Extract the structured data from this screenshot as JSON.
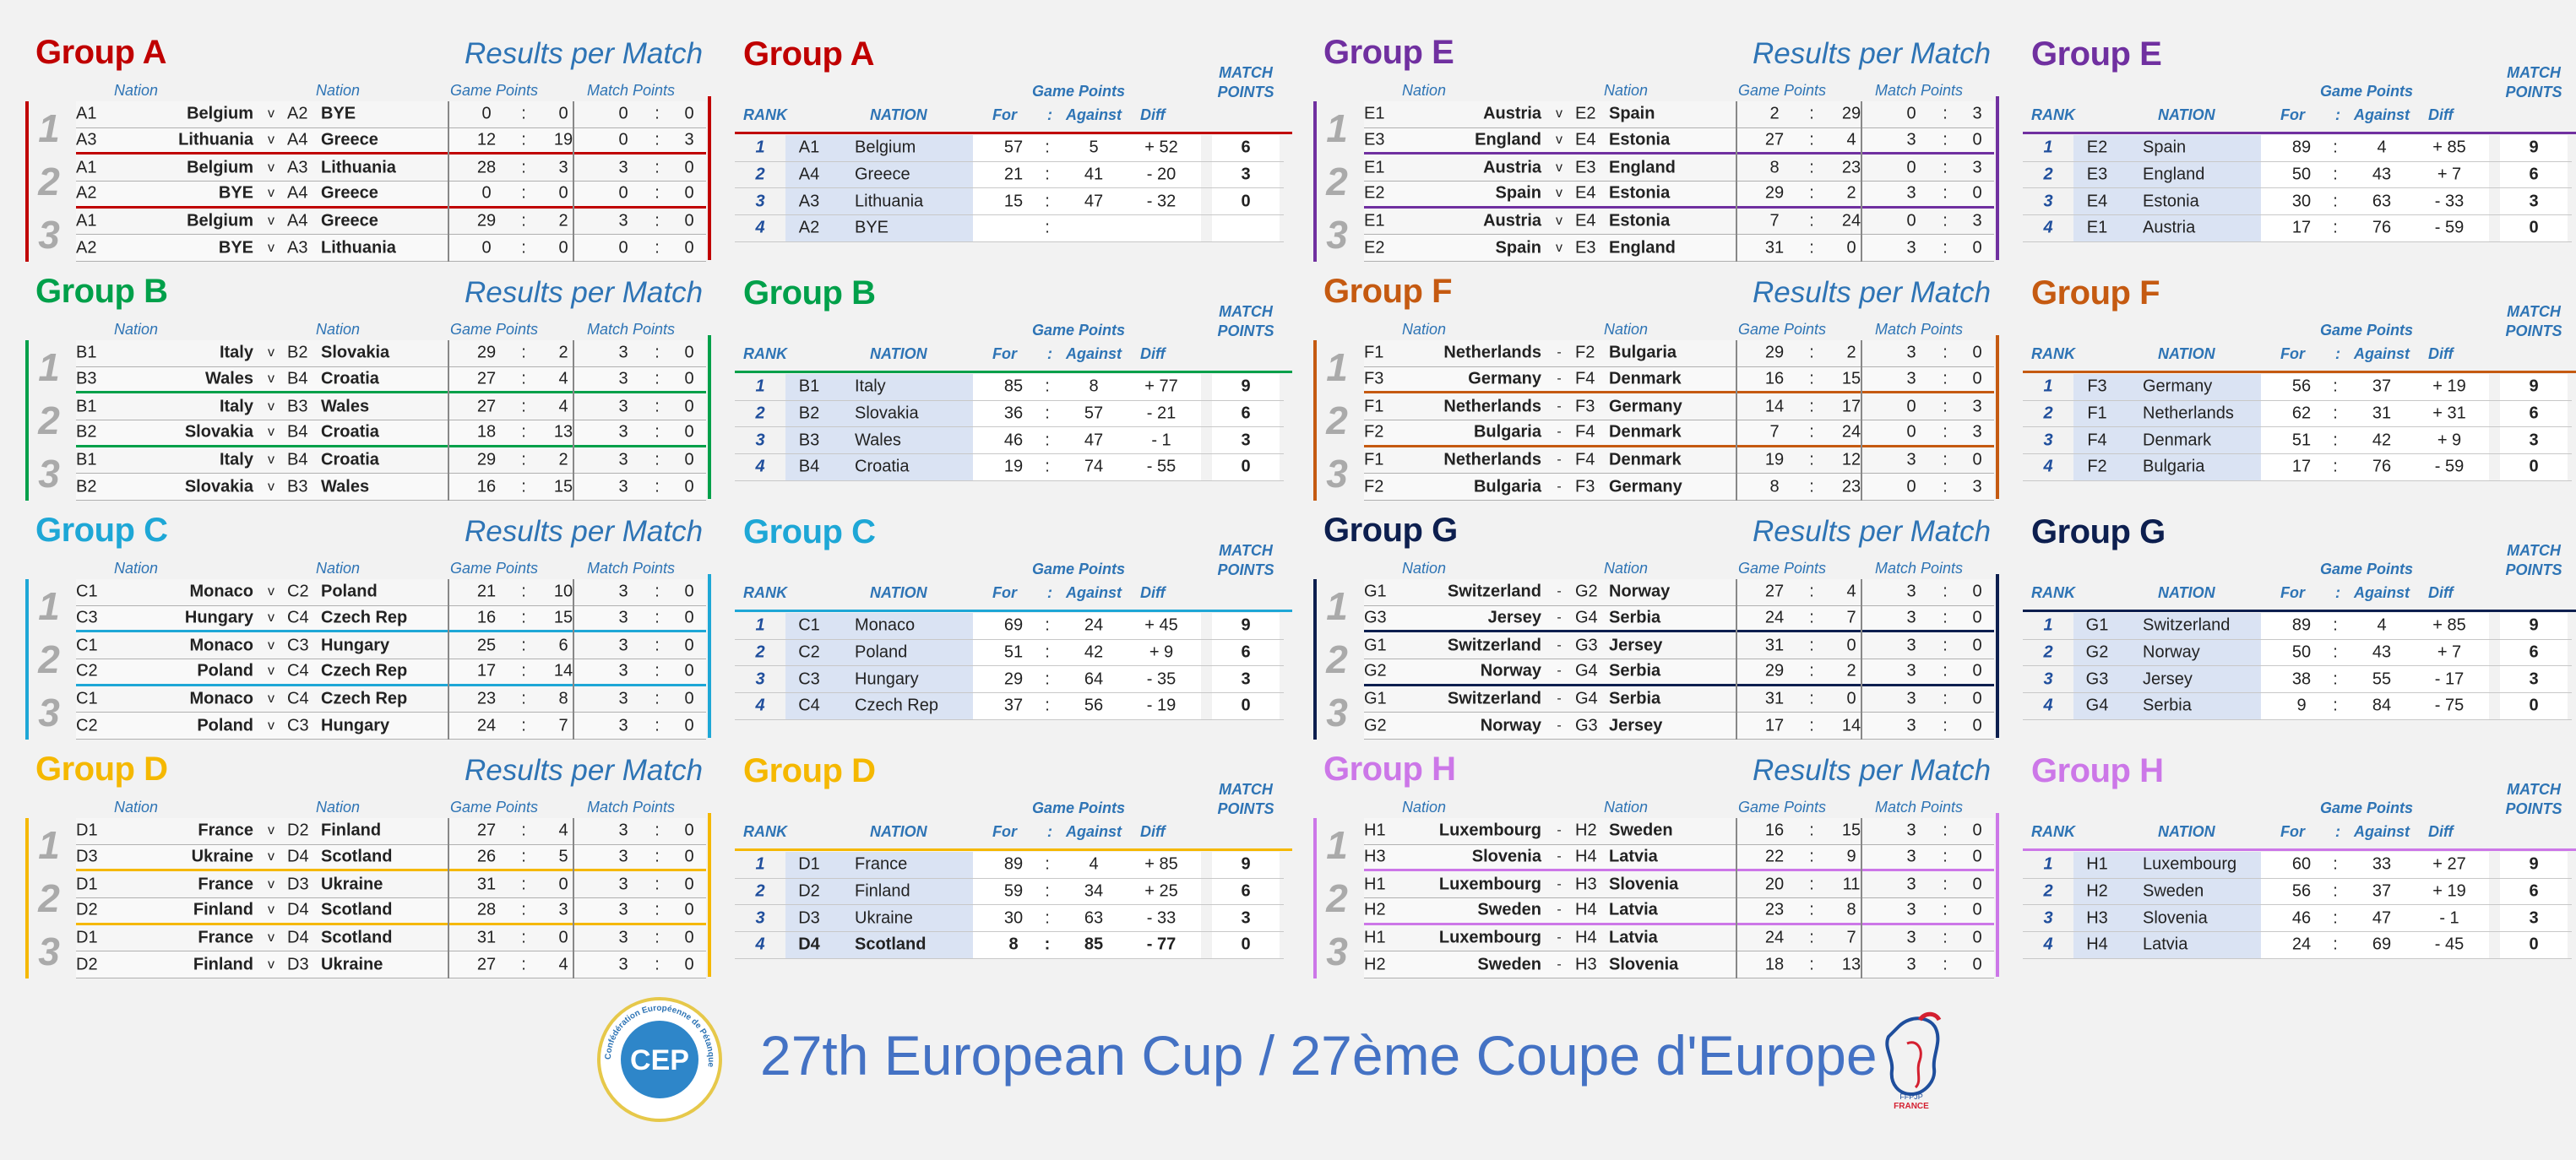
{
  "results_title": "Results per Match",
  "ranking_header": {
    "rank": "RANK",
    "nation": "NATION",
    "game_points": "Game Points",
    "for": "For",
    "colon": ":",
    "against": "Against",
    "diff": "Diff",
    "match_points_1": "MATCH",
    "match_points_2": "POINTS"
  },
  "results_header": {
    "nation": "Nation",
    "game_points": "Game Points",
    "match_points": "Match Points"
  },
  "footer": {
    "title": "27th European Cup / 27ème Coupe d'Europe",
    "logo_text": "CEP",
    "logo_ring_text": "Confédération Européenne de Pétanque",
    "ffpjp_text": "FFPJP",
    "france_text": "FRANCE"
  },
  "groups": [
    {
      "name": "Group A",
      "color": "#c00000",
      "matchdays": [
        "1",
        "2",
        "3"
      ],
      "matches": [
        {
          "c1": "A1",
          "n1": "Belgium",
          "v": "v",
          "c2": "A2",
          "n2": "BYE",
          "g1": "0",
          "g2": "0",
          "m1": "0",
          "m2": "0"
        },
        {
          "c1": "A3",
          "n1": "Lithuania",
          "v": "v",
          "c2": "A4",
          "n2": "Greece",
          "g1": "12",
          "g2": "19",
          "m1": "0",
          "m2": "3"
        },
        {
          "c1": "A1",
          "n1": "Belgium",
          "v": "v",
          "c2": "A3",
          "n2": "Lithuania",
          "g1": "28",
          "g2": "3",
          "m1": "3",
          "m2": "0"
        },
        {
          "c1": "A2",
          "n1": "BYE",
          "v": "v",
          "c2": "A4",
          "n2": "Greece",
          "g1": "0",
          "g2": "0",
          "m1": "0",
          "m2": "0"
        },
        {
          "c1": "A1",
          "n1": "Belgium",
          "v": "v",
          "c2": "A4",
          "n2": "Greece",
          "g1": "29",
          "g2": "2",
          "m1": "3",
          "m2": "0"
        },
        {
          "c1": "A2",
          "n1": "BYE",
          "v": "v",
          "c2": "A3",
          "n2": "Lithuania",
          "g1": "0",
          "g2": "0",
          "m1": "0",
          "m2": "0"
        }
      ],
      "ranking": [
        {
          "rank": "1",
          "code": "A1",
          "nation": "Belgium",
          "for": "57",
          "against": "5",
          "diff": "+ 52",
          "mp": "6"
        },
        {
          "rank": "2",
          "code": "A4",
          "nation": "Greece",
          "for": "21",
          "against": "41",
          "diff": "- 20",
          "mp": "3"
        },
        {
          "rank": "3",
          "code": "A3",
          "nation": "Lithuania",
          "for": "15",
          "against": "47",
          "diff": "- 32",
          "mp": "0"
        },
        {
          "rank": "4",
          "code": "A2",
          "nation": "BYE",
          "for": "",
          "against": "",
          "diff": "",
          "mp": ""
        }
      ]
    },
    {
      "name": "Group B",
      "color": "#00a04a",
      "matchdays": [
        "1",
        "2",
        "3"
      ],
      "matches": [
        {
          "c1": "B1",
          "n1": "Italy",
          "v": "v",
          "c2": "B2",
          "n2": "Slovakia",
          "g1": "29",
          "g2": "2",
          "m1": "3",
          "m2": "0"
        },
        {
          "c1": "B3",
          "n1": "Wales",
          "v": "v",
          "c2": "B4",
          "n2": "Croatia",
          "g1": "27",
          "g2": "4",
          "m1": "3",
          "m2": "0"
        },
        {
          "c1": "B1",
          "n1": "Italy",
          "v": "v",
          "c2": "B3",
          "n2": "Wales",
          "g1": "27",
          "g2": "4",
          "m1": "3",
          "m2": "0"
        },
        {
          "c1": "B2",
          "n1": "Slovakia",
          "v": "v",
          "c2": "B4",
          "n2": "Croatia",
          "g1": "18",
          "g2": "13",
          "m1": "3",
          "m2": "0"
        },
        {
          "c1": "B1",
          "n1": "Italy",
          "v": "v",
          "c2": "B4",
          "n2": "Croatia",
          "g1": "29",
          "g2": "2",
          "m1": "3",
          "m2": "0"
        },
        {
          "c1": "B2",
          "n1": "Slovakia",
          "v": "v",
          "c2": "B3",
          "n2": "Wales",
          "g1": "16",
          "g2": "15",
          "m1": "3",
          "m2": "0"
        }
      ],
      "ranking": [
        {
          "rank": "1",
          "code": "B1",
          "nation": "Italy",
          "for": "85",
          "against": "8",
          "diff": "+ 77",
          "mp": "9"
        },
        {
          "rank": "2",
          "code": "B2",
          "nation": "Slovakia",
          "for": "36",
          "against": "57",
          "diff": "- 21",
          "mp": "6"
        },
        {
          "rank": "3",
          "code": "B3",
          "nation": "Wales",
          "for": "46",
          "against": "47",
          "diff": "- 1",
          "mp": "3"
        },
        {
          "rank": "4",
          "code": "B4",
          "nation": "Croatia",
          "for": "19",
          "against": "74",
          "diff": "- 55",
          "mp": "0"
        }
      ]
    },
    {
      "name": "Group C",
      "color": "#1ea7d6",
      "matchdays": [
        "1",
        "2",
        "3"
      ],
      "matches": [
        {
          "c1": "C1",
          "n1": "Monaco",
          "v": "v",
          "c2": "C2",
          "n2": "Poland",
          "g1": "21",
          "g2": "10",
          "m1": "3",
          "m2": "0"
        },
        {
          "c1": "C3",
          "n1": "Hungary",
          "v": "v",
          "c2": "C4",
          "n2": "Czech Rep",
          "g1": "16",
          "g2": "15",
          "m1": "3",
          "m2": "0"
        },
        {
          "c1": "C1",
          "n1": "Monaco",
          "v": "v",
          "c2": "C3",
          "n2": "Hungary",
          "g1": "25",
          "g2": "6",
          "m1": "3",
          "m2": "0"
        },
        {
          "c1": "C2",
          "n1": "Poland",
          "v": "v",
          "c2": "C4",
          "n2": "Czech Rep",
          "g1": "17",
          "g2": "14",
          "m1": "3",
          "m2": "0"
        },
        {
          "c1": "C1",
          "n1": "Monaco",
          "v": "v",
          "c2": "C4",
          "n2": "Czech Rep",
          "g1": "23",
          "g2": "8",
          "m1": "3",
          "m2": "0"
        },
        {
          "c1": "C2",
          "n1": "Poland",
          "v": "v",
          "c2": "C3",
          "n2": "Hungary",
          "g1": "24",
          "g2": "7",
          "m1": "3",
          "m2": "0"
        }
      ],
      "ranking": [
        {
          "rank": "1",
          "code": "C1",
          "nation": "Monaco",
          "for": "69",
          "against": "24",
          "diff": "+ 45",
          "mp": "9"
        },
        {
          "rank": "2",
          "code": "C2",
          "nation": "Poland",
          "for": "51",
          "against": "42",
          "diff": "+ 9",
          "mp": "6"
        },
        {
          "rank": "3",
          "code": "C3",
          "nation": "Hungary",
          "for": "29",
          "against": "64",
          "diff": "- 35",
          "mp": "3"
        },
        {
          "rank": "4",
          "code": "C4",
          "nation": "Czech Rep",
          "for": "37",
          "against": "56",
          "diff": "- 19",
          "mp": "0"
        }
      ]
    },
    {
      "name": "Group D",
      "color": "#f5b800",
      "matchdays": [
        "1",
        "2",
        "3"
      ],
      "matches": [
        {
          "c1": "D1",
          "n1": "France",
          "v": "v",
          "c2": "D2",
          "n2": "Finland",
          "g1": "27",
          "g2": "4",
          "m1": "3",
          "m2": "0"
        },
        {
          "c1": "D3",
          "n1": "Ukraine",
          "v": "v",
          "c2": "D4",
          "n2": "Scotland",
          "g1": "26",
          "g2": "5",
          "m1": "3",
          "m2": "0"
        },
        {
          "c1": "D1",
          "n1": "France",
          "v": "v",
          "c2": "D3",
          "n2": "Ukraine",
          "g1": "31",
          "g2": "0",
          "m1": "3",
          "m2": "0"
        },
        {
          "c1": "D2",
          "n1": "Finland",
          "v": "v",
          "c2": "D4",
          "n2": "Scotland",
          "g1": "28",
          "g2": "3",
          "m1": "3",
          "m2": "0"
        },
        {
          "c1": "D1",
          "n1": "France",
          "v": "v",
          "c2": "D4",
          "n2": "Scotland",
          "g1": "31",
          "g2": "0",
          "m1": "3",
          "m2": "0"
        },
        {
          "c1": "D2",
          "n1": "Finland",
          "v": "v",
          "c2": "D3",
          "n2": "Ukraine",
          "g1": "27",
          "g2": "4",
          "m1": "3",
          "m2": "0"
        }
      ],
      "ranking": [
        {
          "rank": "1",
          "code": "D1",
          "nation": "France",
          "for": "89",
          "against": "4",
          "diff": "+ 85",
          "mp": "9"
        },
        {
          "rank": "2",
          "code": "D2",
          "nation": "Finland",
          "for": "59",
          "against": "34",
          "diff": "+ 25",
          "mp": "6"
        },
        {
          "rank": "3",
          "code": "D3",
          "nation": "Ukraine",
          "for": "30",
          "against": "63",
          "diff": "- 33",
          "mp": "3"
        },
        {
          "rank": "4",
          "code": "D4",
          "nation": "Scotland",
          "for": "8",
          "against": "85",
          "diff": "- 77",
          "mp": "0"
        }
      ]
    },
    {
      "name": "Group E",
      "color": "#7030a0",
      "matchdays": [
        "1",
        "2",
        "3"
      ],
      "matches": [
        {
          "c1": "E1",
          "n1": "Austria",
          "v": "v",
          "c2": "E2",
          "n2": "Spain",
          "g1": "2",
          "g2": "29",
          "m1": "0",
          "m2": "3"
        },
        {
          "c1": "E3",
          "n1": "England",
          "v": "v",
          "c2": "E4",
          "n2": "Estonia",
          "g1": "27",
          "g2": "4",
          "m1": "3",
          "m2": "0"
        },
        {
          "c1": "E1",
          "n1": "Austria",
          "v": "v",
          "c2": "E3",
          "n2": "England",
          "g1": "8",
          "g2": "23",
          "m1": "0",
          "m2": "3"
        },
        {
          "c1": "E2",
          "n1": "Spain",
          "v": "v",
          "c2": "E4",
          "n2": "Estonia",
          "g1": "29",
          "g2": "2",
          "m1": "3",
          "m2": "0"
        },
        {
          "c1": "E1",
          "n1": "Austria",
          "v": "v",
          "c2": "E4",
          "n2": "Estonia",
          "g1": "7",
          "g2": "24",
          "m1": "0",
          "m2": "3"
        },
        {
          "c1": "E2",
          "n1": "Spain",
          "v": "v",
          "c2": "E3",
          "n2": "England",
          "g1": "31",
          "g2": "0",
          "m1": "3",
          "m2": "0"
        }
      ],
      "ranking": [
        {
          "rank": "1",
          "code": "E2",
          "nation": "Spain",
          "for": "89",
          "against": "4",
          "diff": "+ 85",
          "mp": "9"
        },
        {
          "rank": "2",
          "code": "E3",
          "nation": "England",
          "for": "50",
          "against": "43",
          "diff": "+ 7",
          "mp": "6"
        },
        {
          "rank": "3",
          "code": "E4",
          "nation": "Estonia",
          "for": "30",
          "against": "63",
          "diff": "- 33",
          "mp": "3"
        },
        {
          "rank": "4",
          "code": "E1",
          "nation": "Austria",
          "for": "17",
          "against": "76",
          "diff": "- 59",
          "mp": "0"
        }
      ]
    },
    {
      "name": "Group F",
      "color": "#c55a11",
      "matchdays": [
        "1",
        "2",
        "3"
      ],
      "matches": [
        {
          "c1": "F1",
          "n1": "Netherlands",
          "v": "-",
          "c2": "F2",
          "n2": "Bulgaria",
          "g1": "29",
          "g2": "2",
          "m1": "3",
          "m2": "0"
        },
        {
          "c1": "F3",
          "n1": "Germany",
          "v": "-",
          "c2": "F4",
          "n2": "Denmark",
          "g1": "16",
          "g2": "15",
          "m1": "3",
          "m2": "0"
        },
        {
          "c1": "F1",
          "n1": "Netherlands",
          "v": "-",
          "c2": "F3",
          "n2": "Germany",
          "g1": "14",
          "g2": "17",
          "m1": "0",
          "m2": "3"
        },
        {
          "c1": "F2",
          "n1": "Bulgaria",
          "v": "-",
          "c2": "F4",
          "n2": "Denmark",
          "g1": "7",
          "g2": "24",
          "m1": "0",
          "m2": "3"
        },
        {
          "c1": "F1",
          "n1": "Netherlands",
          "v": "-",
          "c2": "F4",
          "n2": "Denmark",
          "g1": "19",
          "g2": "12",
          "m1": "3",
          "m2": "0"
        },
        {
          "c1": "F2",
          "n1": "Bulgaria",
          "v": "-",
          "c2": "F3",
          "n2": "Germany",
          "g1": "8",
          "g2": "23",
          "m1": "0",
          "m2": "3"
        }
      ],
      "ranking": [
        {
          "rank": "1",
          "code": "F3",
          "nation": "Germany",
          "for": "56",
          "against": "37",
          "diff": "+ 19",
          "mp": "9"
        },
        {
          "rank": "2",
          "code": "F1",
          "nation": "Netherlands",
          "for": "62",
          "against": "31",
          "diff": "+ 31",
          "mp": "6"
        },
        {
          "rank": "3",
          "code": "F4",
          "nation": "Denmark",
          "for": "51",
          "against": "42",
          "diff": "+ 9",
          "mp": "3"
        },
        {
          "rank": "4",
          "code": "F2",
          "nation": "Bulgaria",
          "for": "17",
          "against": "76",
          "diff": "- 59",
          "mp": "0"
        }
      ]
    },
    {
      "name": "Group G",
      "color": "#0d1f4f",
      "matchdays": [
        "1",
        "2",
        "3"
      ],
      "matches": [
        {
          "c1": "G1",
          "n1": "Switzerland",
          "v": "-",
          "c2": "G2",
          "n2": "Norway",
          "g1": "27",
          "g2": "4",
          "m1": "3",
          "m2": "0"
        },
        {
          "c1": "G3",
          "n1": "Jersey",
          "v": "-",
          "c2": "G4",
          "n2": "Serbia",
          "g1": "24",
          "g2": "7",
          "m1": "3",
          "m2": "0"
        },
        {
          "c1": "G1",
          "n1": "Switzerland",
          "v": "-",
          "c2": "G3",
          "n2": "Jersey",
          "g1": "31",
          "g2": "0",
          "m1": "3",
          "m2": "0"
        },
        {
          "c1": "G2",
          "n1": "Norway",
          "v": "-",
          "c2": "G4",
          "n2": "Serbia",
          "g1": "29",
          "g2": "2",
          "m1": "3",
          "m2": "0"
        },
        {
          "c1": "G1",
          "n1": "Switzerland",
          "v": "-",
          "c2": "G4",
          "n2": "Serbia",
          "g1": "31",
          "g2": "0",
          "m1": "3",
          "m2": "0"
        },
        {
          "c1": "G2",
          "n1": "Norway",
          "v": "-",
          "c2": "G3",
          "n2": "Jersey",
          "g1": "17",
          "g2": "14",
          "m1": "3",
          "m2": "0"
        }
      ],
      "ranking": [
        {
          "rank": "1",
          "code": "G1",
          "nation": "Switzerland",
          "for": "89",
          "against": "4",
          "diff": "+ 85",
          "mp": "9"
        },
        {
          "rank": "2",
          "code": "G2",
          "nation": "Norway",
          "for": "50",
          "against": "43",
          "diff": "+ 7",
          "mp": "6"
        },
        {
          "rank": "3",
          "code": "G3",
          "nation": "Jersey",
          "for": "38",
          "against": "55",
          "diff": "- 17",
          "mp": "3"
        },
        {
          "rank": "4",
          "code": "G4",
          "nation": "Serbia",
          "for": "9",
          "against": "84",
          "diff": "- 75",
          "mp": "0"
        }
      ]
    },
    {
      "name": "Group H",
      "color": "#cc77e8",
      "matchdays": [
        "1",
        "2",
        "3"
      ],
      "matches": [
        {
          "c1": "H1",
          "n1": "Luxembourg",
          "v": "-",
          "c2": "H2",
          "n2": "Sweden",
          "g1": "16",
          "g2": "15",
          "m1": "3",
          "m2": "0"
        },
        {
          "c1": "H3",
          "n1": "Slovenia",
          "v": "-",
          "c2": "H4",
          "n2": "Latvia",
          "g1": "22",
          "g2": "9",
          "m1": "3",
          "m2": "0"
        },
        {
          "c1": "H1",
          "n1": "Luxembourg",
          "v": "-",
          "c2": "H3",
          "n2": "Slovenia",
          "g1": "20",
          "g2": "11",
          "m1": "3",
          "m2": "0"
        },
        {
          "c1": "H2",
          "n1": "Sweden",
          "v": "-",
          "c2": "H4",
          "n2": "Latvia",
          "g1": "23",
          "g2": "8",
          "m1": "3",
          "m2": "0"
        },
        {
          "c1": "H1",
          "n1": "Luxembourg",
          "v": "-",
          "c2": "H4",
          "n2": "Latvia",
          "g1": "24",
          "g2": "7",
          "m1": "3",
          "m2": "0"
        },
        {
          "c1": "H2",
          "n1": "Sweden",
          "v": "-",
          "c2": "H3",
          "n2": "Slovenia",
          "g1": "18",
          "g2": "13",
          "m1": "3",
          "m2": "0"
        }
      ],
      "ranking": [
        {
          "rank": "1",
          "code": "H1",
          "nation": "Luxembourg",
          "for": "60",
          "against": "33",
          "diff": "+ 27",
          "mp": "9"
        },
        {
          "rank": "2",
          "code": "H2",
          "nation": "Sweden",
          "for": "56",
          "against": "37",
          "diff": "+ 19",
          "mp": "6"
        },
        {
          "rank": "3",
          "code": "H3",
          "nation": "Slovenia",
          "for": "46",
          "against": "47",
          "diff": "- 1",
          "mp": "3"
        },
        {
          "rank": "4",
          "code": "H4",
          "nation": "Latvia",
          "for": "24",
          "against": "69",
          "diff": "- 45",
          "mp": "0"
        }
      ]
    }
  ]
}
